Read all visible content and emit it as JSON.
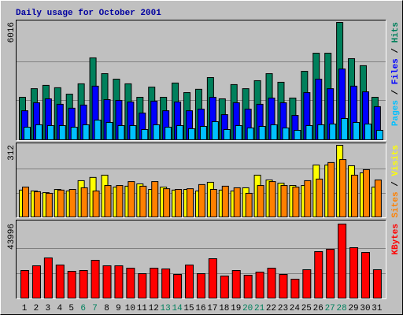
{
  "chart_data": {
    "type": "bar",
    "title": "Daily usage for October 2001",
    "categories": [
      "1",
      "2",
      "3",
      "4",
      "5",
      "6",
      "7",
      "8",
      "9",
      "10",
      "11",
      "12",
      "13",
      "14",
      "15",
      "16",
      "17",
      "18",
      "19",
      "20",
      "21",
      "22",
      "23",
      "24",
      "25",
      "26",
      "27",
      "28",
      "29",
      "30",
      "31"
    ],
    "category_colors": [
      "#000000",
      "#000000",
      "#000000",
      "#000000",
      "#000000",
      "#00805c",
      "#00805c",
      "#000000",
      "#000000",
      "#000000",
      "#000000",
      "#000000",
      "#00805c",
      "#00805c",
      "#000000",
      "#000000",
      "#000000",
      "#000000",
      "#000000",
      "#00805c",
      "#00805c",
      "#000000",
      "#000000",
      "#000000",
      "#000000",
      "#000000",
      "#00805c",
      "#00805c",
      "#000000",
      "#000000",
      "#000000"
    ],
    "legend_separator": " / ",
    "panels": [
      {
        "ylim": [
          0,
          6016
        ],
        "yticks": [
          6016
        ],
        "series": [
          {
            "name": "Hits",
            "color": "#00805c",
            "values": [
              2180,
              2620,
              2790,
              2670,
              2340,
              2870,
              4200,
              3390,
              3110,
              2870,
              2180,
              2700,
              2180,
              2910,
              2420,
              2590,
              3190,
              2100,
              2830,
              2620,
              3030,
              3390,
              2950,
              2140,
              3510,
              4440,
              4440,
              6016,
              4160,
              3800,
              2180
            ]
          },
          {
            "name": "Files",
            "color": "#0000ff",
            "values": [
              1490,
              1900,
              2100,
              1820,
              1620,
              1780,
              2750,
              2060,
              2020,
              1940,
              1370,
              1980,
              1490,
              1940,
              1490,
              1570,
              2180,
              1290,
              1900,
              1570,
              1820,
              2140,
              1900,
              1250,
              2420,
              3110,
              2620,
              3630,
              2750,
              2460,
              1700
            ]
          },
          {
            "name": "Pages",
            "color": "#00c0ff",
            "values": [
              646,
              768,
              727,
              727,
              646,
              768,
              1010,
              889,
              727,
              727,
              525,
              768,
              646,
              727,
              566,
              687,
              929,
              525,
              727,
              606,
              687,
              768,
              606,
              485,
              727,
              768,
              808,
              1091,
              889,
              808,
              485
            ]
          }
        ]
      },
      {
        "ylim": [
          0,
          312
        ],
        "yticks": [
          312
        ],
        "series": [
          {
            "name": "Visits",
            "color": "#ffff00",
            "values": [
              117,
              113,
              106,
              120,
              113,
              158,
              172,
              182,
              130,
              134,
              144,
              120,
              130,
              117,
              120,
              113,
              151,
              117,
              113,
              127,
              182,
              161,
              147,
              137,
              137,
              226,
              226,
              312,
              223,
              192,
              130
            ]
          },
          {
            "name": "Sites",
            "color": "#ff8000",
            "values": [
              130,
              110,
              103,
              117,
              120,
              127,
              113,
              137,
              137,
              154,
              134,
              154,
              123,
              120,
              123,
              141,
              120,
              134,
              127,
              103,
              137,
              154,
              137,
              130,
              158,
              165,
              237,
              250,
              182,
              206,
              161
            ]
          }
        ]
      },
      {
        "ylim": [
          0,
          43996
        ],
        "yticks": [
          43996
        ],
        "series": [
          {
            "name": "KBytes",
            "color": "#ff0000",
            "values": [
              16380,
              19188,
              23868,
              19656,
              15912,
              16380,
              22464,
              19188,
              19188,
              17784,
              14508,
              17784,
              17316,
              14040,
              19656,
              14508,
              23400,
              13104,
              16380,
              13572,
              15444,
              17784,
              14040,
              11232,
              16848,
              27612,
              29016,
              43996,
              29952,
              27144,
              16848
            ]
          }
        ]
      }
    ]
  }
}
